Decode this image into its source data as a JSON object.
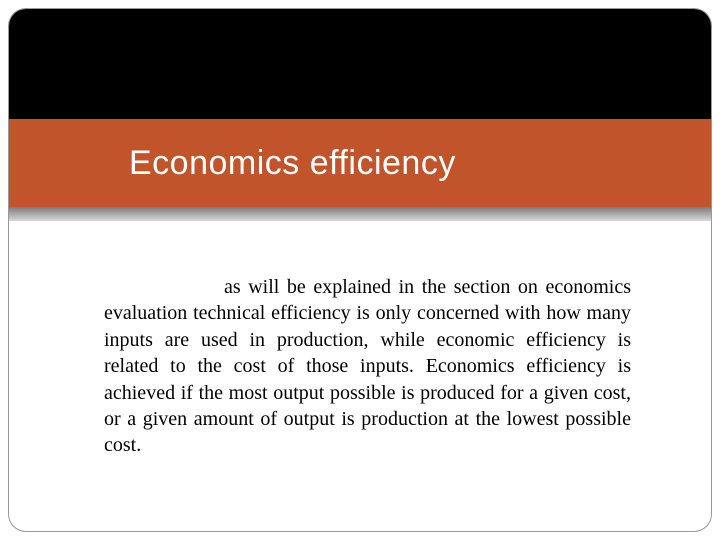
{
  "slide": {
    "title": "Economics efficiency",
    "body": "as will be explained in the section on economics evaluation technical efficiency is only concerned with how many inputs are used in production, while economic efficiency is related to the cost of those inputs. Economics  efficiency  is achieved if the most output possible is produced for a given cost, or a given amount of output is production  at the lowest possible cost."
  },
  "style": {
    "title_band_color": "#c1542b",
    "top_region_color": "#000000",
    "background_color": "#ffffff",
    "title_color": "#ffffff",
    "body_color": "#000000",
    "title_fontsize": 34,
    "body_fontsize": 20,
    "frame_border_color": "#999999",
    "frame_border_radius": 18
  }
}
